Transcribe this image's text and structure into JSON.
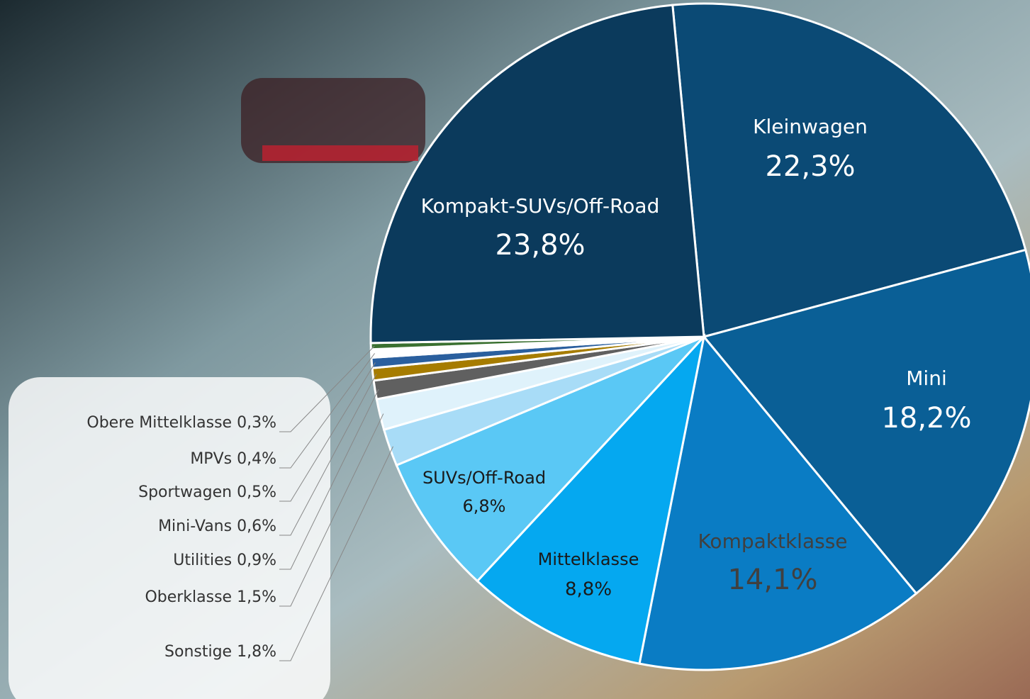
{
  "chart_data": {
    "type": "pie",
    "categories": [
      "Kleinwagen",
      "Mini",
      "Kompaktklasse",
      "Mittelklasse",
      "SUVs/Off-Road",
      "Sonstige",
      "Oberklasse",
      "Utilities",
      "Mini-Vans",
      "Sportwagen",
      "MPVs",
      "Obere Mittelklasse",
      "Kompakt-SUVs/Off-Road"
    ],
    "values": [
      22.3,
      18.2,
      14.1,
      8.8,
      6.8,
      1.8,
      1.5,
      0.9,
      0.6,
      0.5,
      0.4,
      0.3,
      23.8
    ],
    "value_labels": [
      "22,3%",
      "18,2%",
      "14,1%",
      "8,8%",
      "6,8%",
      "1,8%",
      "1,5%",
      "0,9%",
      "0,6%",
      "0,5%",
      "0,4%",
      "0,3%",
      "23,8%"
    ],
    "colors": [
      "#0b4a75",
      "#0a5f96",
      "#0a7cc4",
      "#05a8f0",
      "#5ac8f5",
      "#a8dcf7",
      "#dff2fb",
      "#606060",
      "#a67c00",
      "#2a5f9e",
      "#ffffff",
      "#3a7030",
      "#0b3a5c"
    ]
  }
}
